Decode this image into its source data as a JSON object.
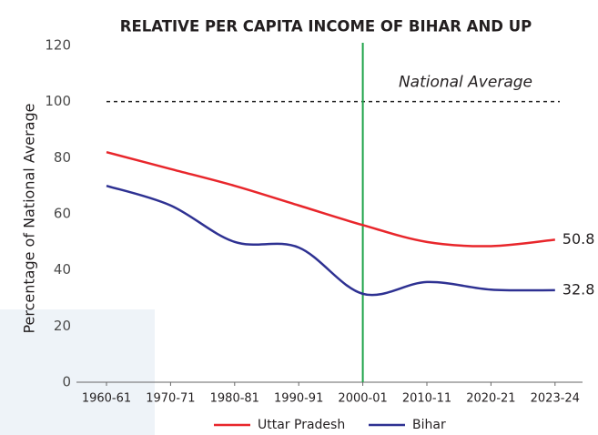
{
  "chart_data": {
    "type": "line",
    "title": "RELATIVE PER CAPITA INCOME OF BIHAR AND UP",
    "y_label": "Percentage of National Average",
    "categories": [
      "1960-61",
      "1970-71",
      "1980-81",
      "1990-91",
      "2000-01",
      "2010-11",
      "2020-21",
      "2023-24"
    ],
    "series": [
      {
        "name": "Uttar Pradesh",
        "color": "#e8262b",
        "values": [
          82,
          76,
          70,
          63,
          56,
          50,
          48.5,
          50.8
        ]
      },
      {
        "name": "Bihar",
        "color": "#2e3192",
        "values": [
          70,
          63,
          50,
          48,
          31.5,
          35.7,
          33,
          32.8
        ]
      }
    ],
    "ylim": [
      0,
      120
    ],
    "yticks": [
      0,
      20,
      40,
      60,
      80,
      100,
      120
    ],
    "reference_line": {
      "value": 100,
      "label": "National Average"
    },
    "vertical_line": {
      "x": "2000-01",
      "color": "#1fa34a"
    },
    "legend": "bottom",
    "grid": false
  }
}
